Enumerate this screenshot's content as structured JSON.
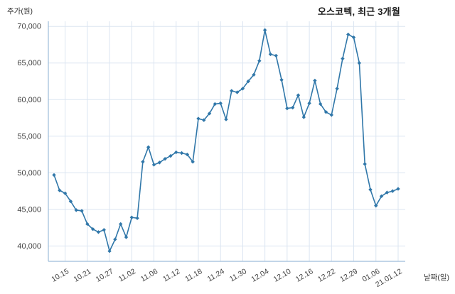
{
  "title": "오스코텍, 최근 3개월",
  "y_axis_label": "주가(원)",
  "x_axis_label": "날짜(일)",
  "colors": {
    "line": "#3077a9",
    "grid": "#dbe5f1",
    "axis": "#9dbcd9",
    "text": "#404040",
    "title": "#1b1b1b"
  },
  "chart_data": {
    "type": "line",
    "title": "오스코텍, 최근 3개월",
    "xlabel": "날짜(일)",
    "ylabel": "주가(원)",
    "grid": true,
    "legend": false,
    "ylim": [
      37900,
      70700
    ],
    "yticks": [
      40000,
      45000,
      50000,
      55000,
      60000,
      65000,
      70000
    ],
    "ytick_labels": [
      "40,000",
      "45,000",
      "50,000",
      "55,000",
      "60,000",
      "65,000",
      "70,000"
    ],
    "x_tick_labels": [
      "10.15",
      "10.21",
      "10.27",
      "11.02",
      "11.06",
      "11.12",
      "11.18",
      "11.24",
      "11.30",
      "12.04",
      "12.10",
      "12.16",
      "12.22",
      "12.29",
      "01.06",
      "21.01.12"
    ],
    "x_tick_indices": [
      2,
      6,
      10,
      14,
      18,
      22,
      26,
      30,
      34,
      38,
      42,
      46,
      50,
      54,
      58,
      62
    ],
    "values": [
      49700,
      47600,
      47200,
      46100,
      44900,
      44800,
      43000,
      42300,
      41900,
      42200,
      39300,
      40900,
      43000,
      41200,
      43900,
      43800,
      51500,
      53500,
      51100,
      51400,
      51900,
      52300,
      52800,
      52700,
      52500,
      51500,
      57400,
      57200,
      58100,
      59400,
      59500,
      57300,
      61200,
      61000,
      61500,
      62500,
      63400,
      65300,
      69500,
      66200,
      66000,
      62700,
      58800,
      58900,
      60600,
      57600,
      59500,
      62600,
      59400,
      58300,
      57900,
      61500,
      65600,
      68900,
      68500,
      65000,
      51200,
      47700,
      45500,
      46800,
      47300,
      47500,
      47800
    ]
  }
}
